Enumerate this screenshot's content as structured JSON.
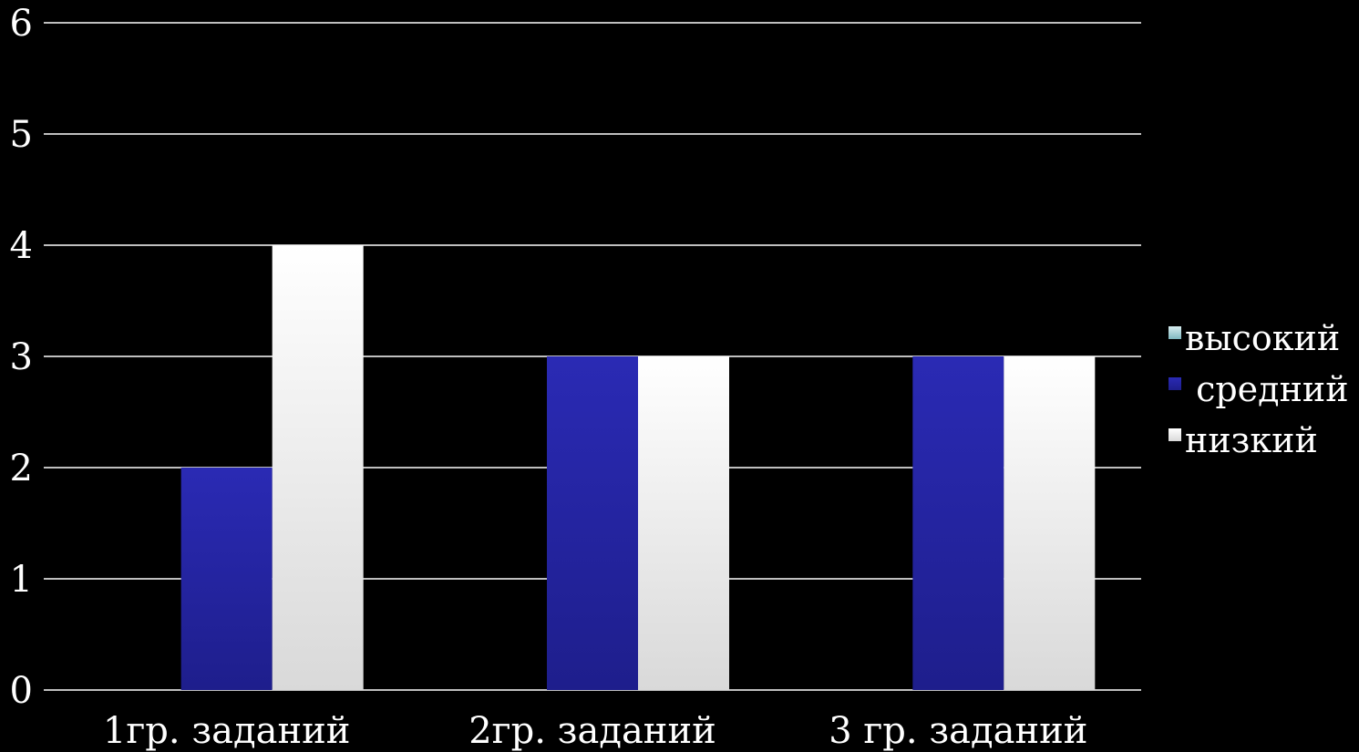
{
  "chart_data": {
    "type": "bar",
    "categories": [
      "1гр. заданий",
      "2гр. заданий",
      "3 гр. заданий"
    ],
    "series": [
      {
        "name": "высокий",
        "values": [
          0,
          0,
          0
        ],
        "color": "#7fb8c0",
        "color_light": "#d8eef0"
      },
      {
        "name": " средний",
        "values": [
          2,
          3,
          3
        ],
        "color": "#1e1e8c",
        "color_light": "#2a2ab4"
      },
      {
        "name": "низкий",
        "values": [
          4,
          3,
          3
        ],
        "color": "#d9d9d9",
        "color_light": "#ffffff"
      }
    ],
    "yticks": [
      "0",
      "1",
      "2",
      "3",
      "4",
      "5",
      "6"
    ],
    "ylim": [
      0,
      6
    ],
    "grid": true,
    "legend": "right"
  }
}
